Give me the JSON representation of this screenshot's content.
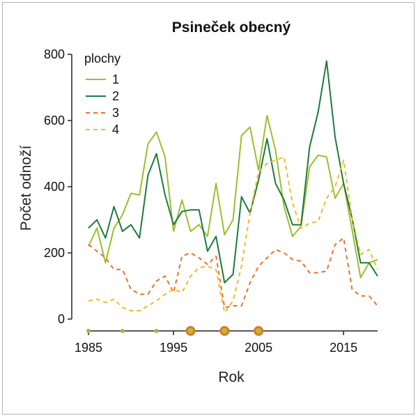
{
  "chart_data": {
    "type": "line",
    "title": "Psineček obecný",
    "xlabel": "Rok",
    "ylabel": "Počet odnoží",
    "xlim": [
      1985,
      2019
    ],
    "ylim": [
      0,
      800
    ],
    "xticks": [
      1985,
      1995,
      2005,
      2015
    ],
    "yticks": [
      0,
      200,
      400,
      600,
      800
    ],
    "legend_title": "plochy",
    "legend_position": "top-left",
    "grid": false,
    "x": [
      1985,
      1986,
      1987,
      1988,
      1989,
      1990,
      1991,
      1992,
      1993,
      1994,
      1995,
      1996,
      1997,
      1998,
      1999,
      2000,
      2001,
      2002,
      2003,
      2004,
      2005,
      2006,
      2007,
      2008,
      2009,
      2010,
      2011,
      2012,
      2013,
      2014,
      2015,
      2016,
      2017,
      2018,
      2019
    ],
    "series": [
      {
        "name": "1",
        "color": "#9bbf2e",
        "dash": "solid",
        "values": [
          220,
          275,
          170,
          275,
          315,
          380,
          375,
          530,
          565,
          490,
          265,
          360,
          265,
          285,
          250,
          410,
          255,
          300,
          555,
          580,
          450,
          615,
          510,
          340,
          250,
          280,
          460,
          495,
          490,
          365,
          410,
          270,
          125,
          170,
          180
        ]
      },
      {
        "name": "2",
        "color": "#1e7a3c",
        "dash": "solid",
        "values": [
          275,
          300,
          245,
          340,
          265,
          285,
          245,
          435,
          500,
          375,
          285,
          325,
          330,
          330,
          205,
          250,
          110,
          135,
          370,
          320,
          420,
          545,
          410,
          360,
          285,
          285,
          520,
          625,
          780,
          550,
          410,
          305,
          170,
          170,
          130
        ]
      },
      {
        "name": "3",
        "color": "#e8722a",
        "dash": "dashed",
        "values": [
          225,
          205,
          185,
          150,
          150,
          90,
          75,
          75,
          115,
          130,
          80,
          190,
          200,
          185,
          165,
          190,
          35,
          40,
          40,
          110,
          160,
          185,
          210,
          200,
          180,
          175,
          140,
          140,
          145,
          225,
          245,
          90,
          70,
          70,
          40
        ]
      },
      {
        "name": "4",
        "color": "#f5b81f",
        "dash": "dashed",
        "values": [
          55,
          60,
          50,
          60,
          35,
          25,
          25,
          40,
          55,
          75,
          90,
          80,
          130,
          155,
          160,
          150,
          20,
          55,
          160,
          320,
          445,
          470,
          480,
          490,
          350,
          275,
          290,
          295,
          365,
          400,
          480,
          305,
          195,
          210,
          150
        ]
      }
    ],
    "markers": [
      {
        "x": 1985,
        "color": "#8bc23f",
        "size": "small"
      },
      {
        "x": 1989,
        "color": "#8bc23f",
        "size": "small"
      },
      {
        "x": 1993,
        "color": "#8bc23f",
        "size": "small"
      },
      {
        "x": 1997,
        "color": "#e8722a",
        "size": "large"
      },
      {
        "x": 2001,
        "color": "#e8722a",
        "size": "large"
      },
      {
        "x": 2005,
        "color": "#e8722a",
        "size": "large"
      }
    ]
  }
}
